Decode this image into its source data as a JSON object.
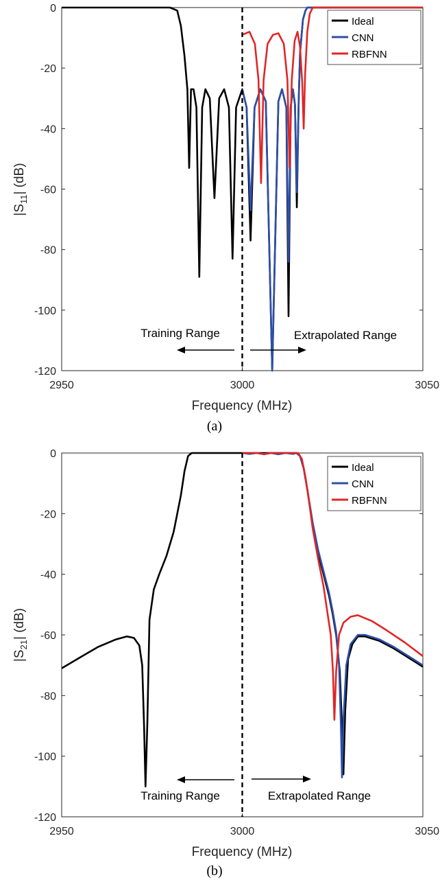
{
  "figure": {
    "panels": [
      "(a)",
      "(b)"
    ]
  },
  "chart_data": [
    {
      "type": "line",
      "panel": "(a)",
      "title": "",
      "xlabel": "Frequency (MHz)",
      "ylabel_base": "|S",
      "ylabel_sub": "11",
      "ylabel_rest": "| (dB)",
      "xlim": [
        2950,
        3050
      ],
      "ylim": [
        -120,
        0
      ],
      "xticks": [
        2950,
        3000,
        3050
      ],
      "yticks": [
        0,
        -20,
        -40,
        -60,
        -80,
        -100,
        -120
      ],
      "legend": {
        "position": "top-right",
        "entries": [
          "Ideal",
          "CNN",
          "RBFNN"
        ]
      },
      "annotations": {
        "left": "Training Range",
        "right": "Extrapolated Range"
      },
      "divider_x": 3000,
      "series": [
        {
          "name": "Ideal",
          "color": "#000000",
          "points": [
            [
              2950,
              0
            ],
            [
              2980,
              0
            ],
            [
              2982,
              -1
            ],
            [
              2983,
              -6
            ],
            [
              2984,
              -16
            ],
            [
              2984.8,
              -27
            ],
            [
              2985.3,
              -53
            ],
            [
              2985.8,
              -27
            ],
            [
              2986.5,
              -27
            ],
            [
              2987.3,
              -33
            ],
            [
              2988.1,
              -89
            ],
            [
              2988.9,
              -33
            ],
            [
              2989.8,
              -27
            ],
            [
              2991,
              -30
            ],
            [
              2992.3,
              -63
            ],
            [
              2993.6,
              -30
            ],
            [
              2995,
              -27
            ],
            [
              2996.3,
              -33
            ],
            [
              2997.3,
              -83
            ],
            [
              2998.3,
              -33
            ],
            [
              3000,
              -27
            ],
            [
              3001.2,
              -33
            ],
            [
              3002.3,
              -77
            ],
            [
              3003.4,
              -33
            ],
            [
              3005,
              -27
            ],
            [
              3006.5,
              -31
            ],
            [
              3008.3,
              -120
            ],
            [
              3010,
              -31
            ],
            [
              3011,
              -27
            ],
            [
              3012.2,
              -33
            ],
            [
              3012.8,
              -102
            ],
            [
              3013.4,
              -33
            ],
            [
              3014,
              -27
            ],
            [
              3014.6,
              -32
            ],
            [
              3015.1,
              -66
            ],
            [
              3015.6,
              -32
            ],
            [
              3016,
              -15
            ],
            [
              3016.8,
              -4
            ],
            [
              3017.5,
              -1
            ],
            [
              3018,
              0
            ],
            [
              3050,
              0
            ]
          ]
        },
        {
          "name": "CNN",
          "color": "#2d4fa8",
          "points": [
            [
              3000,
              -27
            ],
            [
              3001.2,
              -33
            ],
            [
              3002.3,
              -67
            ],
            [
              3003.4,
              -33
            ],
            [
              3005,
              -27
            ],
            [
              3006.5,
              -31
            ],
            [
              3008.3,
              -120
            ],
            [
              3010,
              -31
            ],
            [
              3011,
              -27
            ],
            [
              3012.2,
              -33
            ],
            [
              3012.8,
              -84
            ],
            [
              3013.4,
              -33
            ],
            [
              3014,
              -27
            ],
            [
              3014.6,
              -32
            ],
            [
              3015.1,
              -61
            ],
            [
              3015.6,
              -32
            ],
            [
              3016,
              -15
            ],
            [
              3016.8,
              -4
            ],
            [
              3017.5,
              -1
            ],
            [
              3018,
              0
            ],
            [
              3050,
              0
            ]
          ]
        },
        {
          "name": "RBFNN",
          "color": "#e02626",
          "points": [
            [
              3000,
              -9
            ],
            [
              3002,
              -8
            ],
            [
              3003.5,
              -12
            ],
            [
              3004.5,
              -24
            ],
            [
              3005.2,
              -58
            ],
            [
              3005.9,
              -24
            ],
            [
              3007,
              -12
            ],
            [
              3008.5,
              -9
            ],
            [
              3010,
              -8.5
            ],
            [
              3011.5,
              -12
            ],
            [
              3012.5,
              -24
            ],
            [
              3013.1,
              -53
            ],
            [
              3013.7,
              -24
            ],
            [
              3014.5,
              -11
            ],
            [
              3015.3,
              -8
            ],
            [
              3016,
              -13
            ],
            [
              3016.6,
              -25
            ],
            [
              3017,
              -40
            ],
            [
              3017.4,
              -22
            ],
            [
              3018,
              -8
            ],
            [
              3018.7,
              -2
            ],
            [
              3019.5,
              0
            ],
            [
              3050,
              0
            ]
          ]
        }
      ]
    },
    {
      "type": "line",
      "panel": "(b)",
      "title": "",
      "xlabel": "Frequency (MHz)",
      "ylabel_base": "|S",
      "ylabel_sub": "21",
      "ylabel_rest": "| (dB)",
      "xlim": [
        2950,
        3050
      ],
      "ylim": [
        -120,
        0
      ],
      "xticks": [
        2950,
        3000,
        3050
      ],
      "yticks": [
        0,
        -20,
        -40,
        -60,
        -80,
        -100,
        -120
      ],
      "legend": {
        "position": "top-right",
        "entries": [
          "Ideal",
          "CNN",
          "RBFNN"
        ]
      },
      "annotations": {
        "left": "Training Range",
        "right": "Extrapolated Range"
      },
      "divider_x": 3000,
      "series": [
        {
          "name": "Ideal",
          "color": "#000000",
          "points": [
            [
              2950,
              -71
            ],
            [
              2955,
              -67.5
            ],
            [
              2960,
              -64
            ],
            [
              2965,
              -61.5
            ],
            [
              2968,
              -60.5
            ],
            [
              2970,
              -61
            ],
            [
              2971.5,
              -63.5
            ],
            [
              2972.3,
              -70
            ],
            [
              2972.8,
              -90
            ],
            [
              2973.2,
              -110
            ],
            [
              2973.7,
              -90
            ],
            [
              2974.3,
              -55
            ],
            [
              2975.5,
              -45
            ],
            [
              2977,
              -40
            ],
            [
              2979,
              -34
            ],
            [
              2981,
              -26
            ],
            [
              2983,
              -14
            ],
            [
              2984,
              -6
            ],
            [
              2985,
              -1
            ],
            [
              2986,
              0
            ],
            [
              3015,
              0
            ],
            [
              3016,
              -1
            ],
            [
              3017,
              -5
            ],
            [
              3018,
              -12
            ],
            [
              3019.5,
              -24
            ],
            [
              3021,
              -33
            ],
            [
              3022.5,
              -40
            ],
            [
              3024,
              -47
            ],
            [
              3025,
              -53
            ],
            [
              3026,
              -60
            ],
            [
              3027,
              -72
            ],
            [
              3027.6,
              -90
            ],
            [
              3028,
              -106
            ],
            [
              3028.5,
              -85
            ],
            [
              3029.3,
              -68
            ],
            [
              3030.5,
              -63
            ],
            [
              3032,
              -60.5
            ],
            [
              3034,
              -60.5
            ],
            [
              3038,
              -62
            ],
            [
              3042,
              -64.5
            ],
            [
              3046,
              -67.5
            ],
            [
              3050,
              -70.5
            ]
          ]
        },
        {
          "name": "CNN",
          "color": "#2d4fa8",
          "points": [
            [
              3000,
              0
            ],
            [
              3002,
              -0.3
            ],
            [
              3004,
              0
            ],
            [
              3006,
              -0.3
            ],
            [
              3008,
              0
            ],
            [
              3010,
              -0.4
            ],
            [
              3012,
              0
            ],
            [
              3014,
              -0.3
            ],
            [
              3015,
              0
            ],
            [
              3016,
              -1
            ],
            [
              3017,
              -5
            ],
            [
              3018,
              -12
            ],
            [
              3019.5,
              -23
            ],
            [
              3021,
              -32
            ],
            [
              3022.5,
              -39
            ],
            [
              3024,
              -46
            ],
            [
              3025,
              -52
            ],
            [
              3026,
              -59
            ],
            [
              3026.8,
              -70
            ],
            [
              3027.3,
              -90
            ],
            [
              3027.6,
              -107
            ],
            [
              3028,
              -88
            ],
            [
              3028.8,
              -70
            ],
            [
              3030,
              -63
            ],
            [
              3032,
              -60
            ],
            [
              3034,
              -60
            ],
            [
              3038,
              -61.5
            ],
            [
              3042,
              -64
            ],
            [
              3046,
              -67
            ],
            [
              3050,
              -70
            ]
          ]
        },
        {
          "name": "RBFNN",
          "color": "#e02626",
          "points": [
            [
              3000,
              0
            ],
            [
              3002,
              0.3
            ],
            [
              3004,
              0
            ],
            [
              3006,
              -0.4
            ],
            [
              3008,
              0
            ],
            [
              3010,
              0.4
            ],
            [
              3012,
              0
            ],
            [
              3014,
              0.3
            ],
            [
              3015.5,
              0
            ],
            [
              3016.5,
              -2
            ],
            [
              3017.5,
              -8
            ],
            [
              3018.5,
              -16
            ],
            [
              3019.5,
              -25
            ],
            [
              3021,
              -35
            ],
            [
              3022.5,
              -44
            ],
            [
              3023.5,
              -52
            ],
            [
              3024.5,
              -60
            ],
            [
              3025.1,
              -72
            ],
            [
              3025.5,
              -88
            ],
            [
              3026,
              -72
            ],
            [
              3026.8,
              -60
            ],
            [
              3028,
              -56
            ],
            [
              3030,
              -54
            ],
            [
              3032,
              -53.5
            ],
            [
              3036,
              -55.5
            ],
            [
              3040,
              -58.5
            ],
            [
              3045,
              -62.5
            ],
            [
              3050,
              -67
            ]
          ]
        }
      ]
    }
  ]
}
